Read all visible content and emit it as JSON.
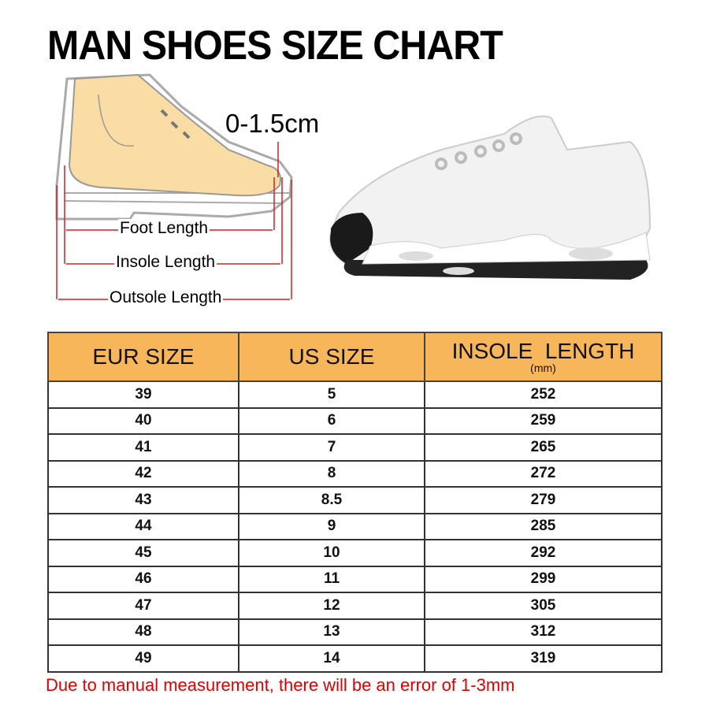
{
  "title": "MAN SHOES SIZE CHART",
  "diagram": {
    "gap_label": "0-1.5cm",
    "foot_length": "Foot Length",
    "insole_length": "Insole Length",
    "outsole_length": "Outsole Length"
  },
  "table": {
    "headers": {
      "eur": "EUR SIZE",
      "us": "US SIZE",
      "insole": "INSOLE  LENGTH",
      "insole_unit": "(mm)"
    },
    "rows": [
      {
        "eur": "39",
        "us": "5",
        "insole": "252"
      },
      {
        "eur": "40",
        "us": "6",
        "insole": "259"
      },
      {
        "eur": "41",
        "us": "7",
        "insole": "265"
      },
      {
        "eur": "42",
        "us": "8",
        "insole": "272"
      },
      {
        "eur": "43",
        "us": "8.5",
        "insole": "279"
      },
      {
        "eur": "44",
        "us": "9",
        "insole": "285"
      },
      {
        "eur": "45",
        "us": "10",
        "insole": "292"
      },
      {
        "eur": "46",
        "us": "11",
        "insole": "299"
      },
      {
        "eur": "47",
        "us": "12",
        "insole": "305"
      },
      {
        "eur": "48",
        "us": "13",
        "insole": "312"
      },
      {
        "eur": "49",
        "us": "14",
        "insole": "319"
      }
    ]
  },
  "note": "Due to manual measurement, there will be an error of 1-3mm",
  "colors": {
    "header": "#F8B65A",
    "note": "#E00000",
    "measure_lines": "#D32020",
    "foot": "#F9DDA4"
  }
}
